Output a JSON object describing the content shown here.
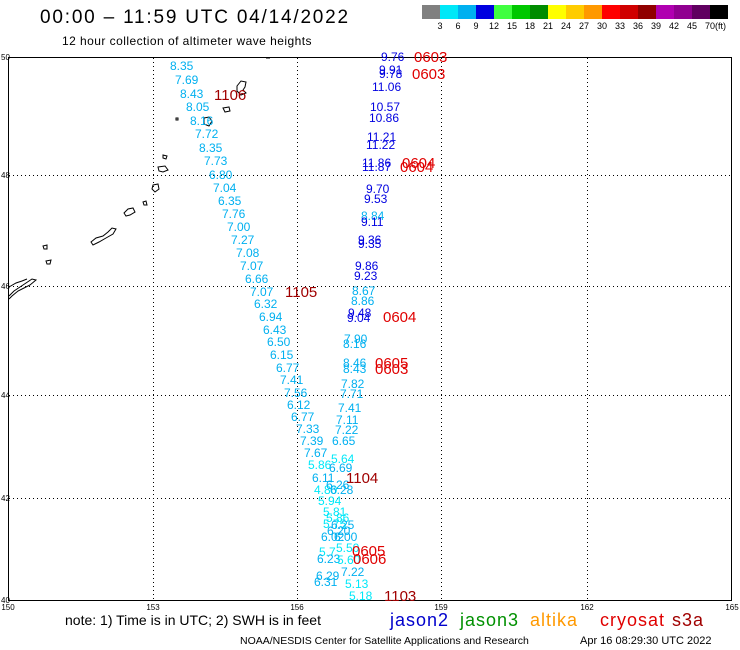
{
  "header": {
    "title": "00:00 – 11:59 UTC 04/14/2022",
    "subtitle": "12 hour collection of altimeter wave heights"
  },
  "color_scale": {
    "labels": [
      "3",
      "6",
      "9",
      "12",
      "15",
      "18",
      "21",
      "24",
      "27",
      "30",
      "33",
      "36",
      "39",
      "42",
      "45",
      "70"
    ],
    "unit": "(ft)",
    "colors": [
      "#808080",
      "#00e8f8",
      "#00b0f0",
      "#0000e0",
      "#40ff40",
      "#00c800",
      "#008c00",
      "#ffff00",
      "#ffcc00",
      "#ff9900",
      "#ff0000",
      "#d00000",
      "#900000",
      "#b000b0",
      "#900090",
      "#600060",
      "#000000"
    ]
  },
  "axes": {
    "lat_ticks": [
      "50",
      "48",
      "46",
      "44",
      "42",
      "40"
    ],
    "lon_ticks": [
      "150",
      "153",
      "156",
      "159",
      "162",
      "165"
    ]
  },
  "wave_heights": [
    [
      "8.35",
      "7.69",
      "8.43",
      "8.05",
      "8.16",
      "7.72",
      "8.35",
      "7.73",
      "6.80",
      "7.04",
      "6.35",
      "7.76",
      "7.00",
      "7.27",
      "7.08",
      "7.07",
      "6.66",
      "7.07",
      "6.32",
      "6.94",
      "6.43",
      "6.50",
      "6.15",
      "6.77",
      "7.41",
      "7.56",
      "6.12",
      "6.77",
      "7.33",
      "7.39",
      "7.67",
      "5.86",
      "6.11",
      "4.80",
      "5.94"
    ],
    [
      "9.76",
      "9.91",
      "9.78",
      "11.06",
      "10.57",
      "10.86",
      "11.21",
      "11.22",
      "11.86",
      "11.87",
      "9.70",
      "9.53",
      "8.84",
      "9.11",
      "9.36",
      "9.35",
      "9.86",
      "9.23",
      "8.67",
      "8.86",
      "9.48",
      "9.04",
      "7.90",
      "8.16",
      "8.46",
      "8.43",
      "7.82",
      "7.71",
      "7.41",
      "7.11",
      "7.22",
      "6.65",
      "5.64",
      "6.69",
      "6.26",
      "6.28"
    ],
    [
      "5.81",
      "5.86",
      "5.75",
      "6.25",
      "6.20",
      "6.02",
      "6.00",
      "5.7",
      "5.50",
      "6.23",
      "5.60",
      "7.22",
      "6.29",
      "6.31",
      "5.13",
      "5.18"
    ]
  ],
  "pass_times": [
    {
      "text": "0603",
      "color": "#e00000"
    },
    {
      "text": "0603",
      "color": "#e00000"
    },
    {
      "text": "0604",
      "color": "#e00000"
    },
    {
      "text": "0604",
      "color": "#e00000"
    },
    {
      "text": "0604",
      "color": "#e00000"
    },
    {
      "text": "0605",
      "color": "#e00000"
    },
    {
      "text": "0603",
      "color": "#e00000"
    },
    {
      "text": "0605",
      "color": "#e00000"
    },
    {
      "text": "0606",
      "color": "#e00000"
    },
    {
      "text": "1106",
      "color": "#a00000"
    },
    {
      "text": "1105",
      "color": "#a00000"
    },
    {
      "text": "1104",
      "color": "#a00000"
    },
    {
      "text": "1103",
      "color": "#a00000"
    }
  ],
  "legend": [
    {
      "name": "jason2",
      "color": "#0000cc"
    },
    {
      "name": "jason3",
      "color": "#009000"
    },
    {
      "name": "altika",
      "color": "#ff9900"
    },
    {
      "name": "cryosat",
      "color": "#e00000"
    },
    {
      "name": "s3a",
      "color": "#a00000"
    }
  ],
  "footer": {
    "note": "note: 1) Time is in UTC; 2) SWH is in feet",
    "credit": "NOAA/NESDIS Center for Satellite Applications and Research",
    "timestamp": "Apr 16 08:29:30 UTC 2022"
  }
}
